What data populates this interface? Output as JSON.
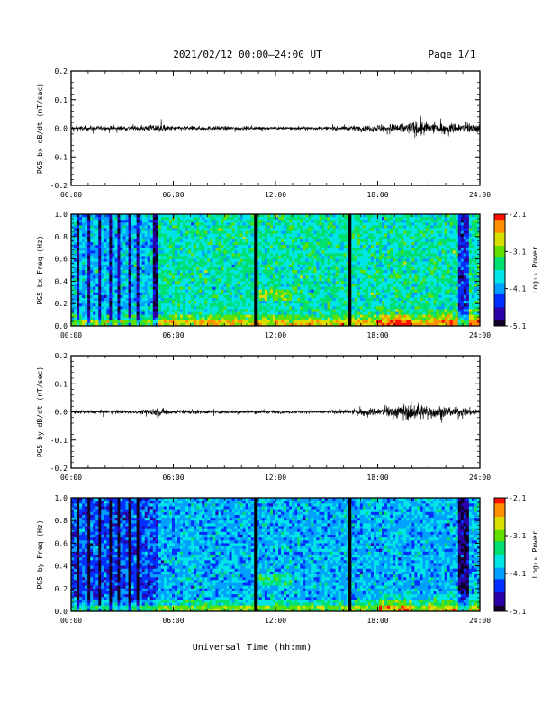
{
  "header": {
    "title": "2021/02/12  00:00–24:00 UT",
    "page": "Page 1/1"
  },
  "colors": {
    "trace": "#000000",
    "gap": "#000000",
    "colormap": [
      "#12002a",
      "#2a00a8",
      "#0030ff",
      "#00a0ff",
      "#00e6e6",
      "#00e070",
      "#60e000",
      "#d8e000",
      "#ff9000",
      "#ff1000"
    ]
  },
  "chart_data": [
    {
      "type": "line",
      "series": [
        {
          "name": "",
          "description_kind": "noise-trace"
        }
      ],
      "ylabel": "PG5 bx dB/dt (nT/sec)",
      "xlabel": "",
      "ylim": [
        -0.2,
        0.2
      ],
      "yticks": [
        "0.2",
        "0.1",
        "0.0",
        "-0.1",
        "-0.2"
      ],
      "xticks": [
        "00:00",
        "06:00",
        "12:00",
        "18:00",
        "24:00"
      ],
      "x_range_hours": [
        0,
        24
      ],
      "envelope": {
        "hours": [
          0,
          2,
          4,
          5,
          6,
          8,
          10,
          12,
          14,
          16,
          17,
          18,
          19,
          20,
          20.5,
          21,
          22,
          23,
          24
        ],
        "amplitude": [
          0.012,
          0.012,
          0.013,
          0.02,
          0.012,
          0.011,
          0.01,
          0.008,
          0.008,
          0.01,
          0.015,
          0.02,
          0.025,
          0.035,
          0.05,
          0.03,
          0.03,
          0.03,
          0.025
        ]
      }
    },
    {
      "type": "heatmap",
      "ylabel": "PG5 bx Freq (Hz)",
      "xlabel": "",
      "ylim": [
        0,
        1.0
      ],
      "yticks": [
        "1.0",
        "0.8",
        "0.6",
        "0.4",
        "0.2",
        "0.0"
      ],
      "xticks": [
        "00:00",
        "06:00",
        "12:00",
        "18:00",
        "24:00"
      ],
      "x_range_hours": [
        0,
        24
      ],
      "colorbar": {
        "label": "Log₁₀ Power",
        "min": -5.1,
        "max": -2.1,
        "ticks": [
          "-2.1",
          "-3.1",
          "-4.1",
          "-5.1"
        ]
      },
      "gaps_hours": [
        10.85,
        16.35
      ],
      "quiet_bands_hours": [
        [
          0.3,
          0.5
        ],
        [
          1.0,
          1.15
        ],
        [
          1.6,
          1.75
        ],
        [
          2.2,
          2.35
        ],
        [
          2.75,
          2.9
        ],
        [
          3.3,
          3.45
        ],
        [
          3.9,
          4.05
        ],
        [
          4.8,
          5.1
        ],
        [
          22.7,
          23.4
        ]
      ],
      "base_level": -3.6
    },
    {
      "type": "line",
      "series": [
        {
          "name": "",
          "description_kind": "noise-trace"
        }
      ],
      "ylabel": "PG5 by dB/dt (nT/sec)",
      "xlabel": "",
      "ylim": [
        -0.2,
        0.2
      ],
      "yticks": [
        "0.2",
        "0.1",
        "0.0",
        "-0.1",
        "-0.2"
      ],
      "xticks": [
        "00:00",
        "06:00",
        "12:00",
        "18:00",
        "24:00"
      ],
      "x_range_hours": [
        0,
        24
      ],
      "envelope": {
        "hours": [
          0,
          2,
          4,
          5,
          5.5,
          6,
          8,
          10,
          12,
          14,
          16,
          17,
          18,
          19,
          20,
          21,
          22,
          23,
          24
        ],
        "amplitude": [
          0.01,
          0.01,
          0.01,
          0.025,
          0.02,
          0.012,
          0.01,
          0.01,
          0.008,
          0.008,
          0.012,
          0.018,
          0.025,
          0.035,
          0.045,
          0.04,
          0.035,
          0.025,
          0.02
        ]
      }
    },
    {
      "type": "heatmap",
      "ylabel": "PG5 by Freq (Hz)",
      "xlabel": "Universal Time (hh:mm)",
      "ylim": [
        0,
        1.0
      ],
      "yticks": [
        "1.0",
        "0.8",
        "0.6",
        "0.4",
        "0.2",
        "0.0"
      ],
      "xticks": [
        "00:00",
        "06:00",
        "12:00",
        "18:00",
        "24:00"
      ],
      "x_range_hours": [
        0,
        24
      ],
      "colorbar": {
        "label": "Log₁₀ Power",
        "min": -5.1,
        "max": -2.1,
        "ticks": [
          "-2.1",
          "-3.1",
          "-4.1",
          "-5.1"
        ]
      },
      "gaps_hours": [
        10.85,
        16.35
      ],
      "quiet_bands_hours": [
        [
          0.3,
          0.5
        ],
        [
          1.0,
          1.15
        ],
        [
          1.6,
          1.75
        ],
        [
          2.2,
          2.35
        ],
        [
          2.75,
          2.9
        ],
        [
          3.3,
          3.45
        ],
        [
          3.9,
          4.05
        ],
        [
          22.7,
          23.4
        ]
      ],
      "base_level": -4.0
    }
  ]
}
